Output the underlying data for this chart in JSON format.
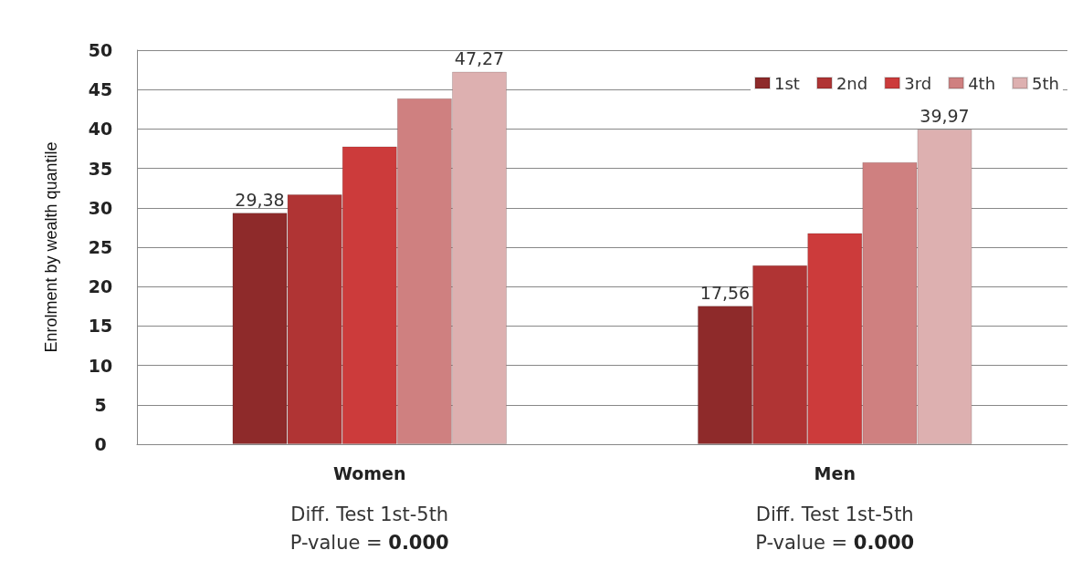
{
  "chart_data": {
    "type": "bar",
    "ylabel": "Enrolment by wealth quantile",
    "categories": [
      "Women",
      "Men"
    ],
    "series": [
      {
        "name": "1st",
        "color": "#8e2a2a",
        "values": [
          29.38,
          17.56
        ],
        "value_labels": [
          "29,38",
          "17,56"
        ]
      },
      {
        "name": "2nd",
        "color": "#b03434",
        "values": [
          31.7,
          22.7
        ]
      },
      {
        "name": "3rd",
        "color": "#cc3b3b",
        "values": [
          37.8,
          26.8
        ]
      },
      {
        "name": "4th",
        "color": "#cf8080",
        "values": [
          43.9,
          35.8
        ]
      },
      {
        "name": "5th",
        "color": "#ddb0b0",
        "values": [
          47.27,
          39.97
        ],
        "value_labels": [
          "47,27",
          "39,97"
        ]
      }
    ],
    "ylim": [
      0,
      50
    ],
    "yticks": [
      0,
      5,
      10,
      15,
      20,
      25,
      30,
      35,
      40,
      45,
      50
    ],
    "grid": "y",
    "legend": "top right",
    "annotations": [
      "Diff. Test 1st-5th",
      "P-value = 0.000",
      "Diff. Test 1st-5th",
      "P-value = 0.000"
    ]
  }
}
